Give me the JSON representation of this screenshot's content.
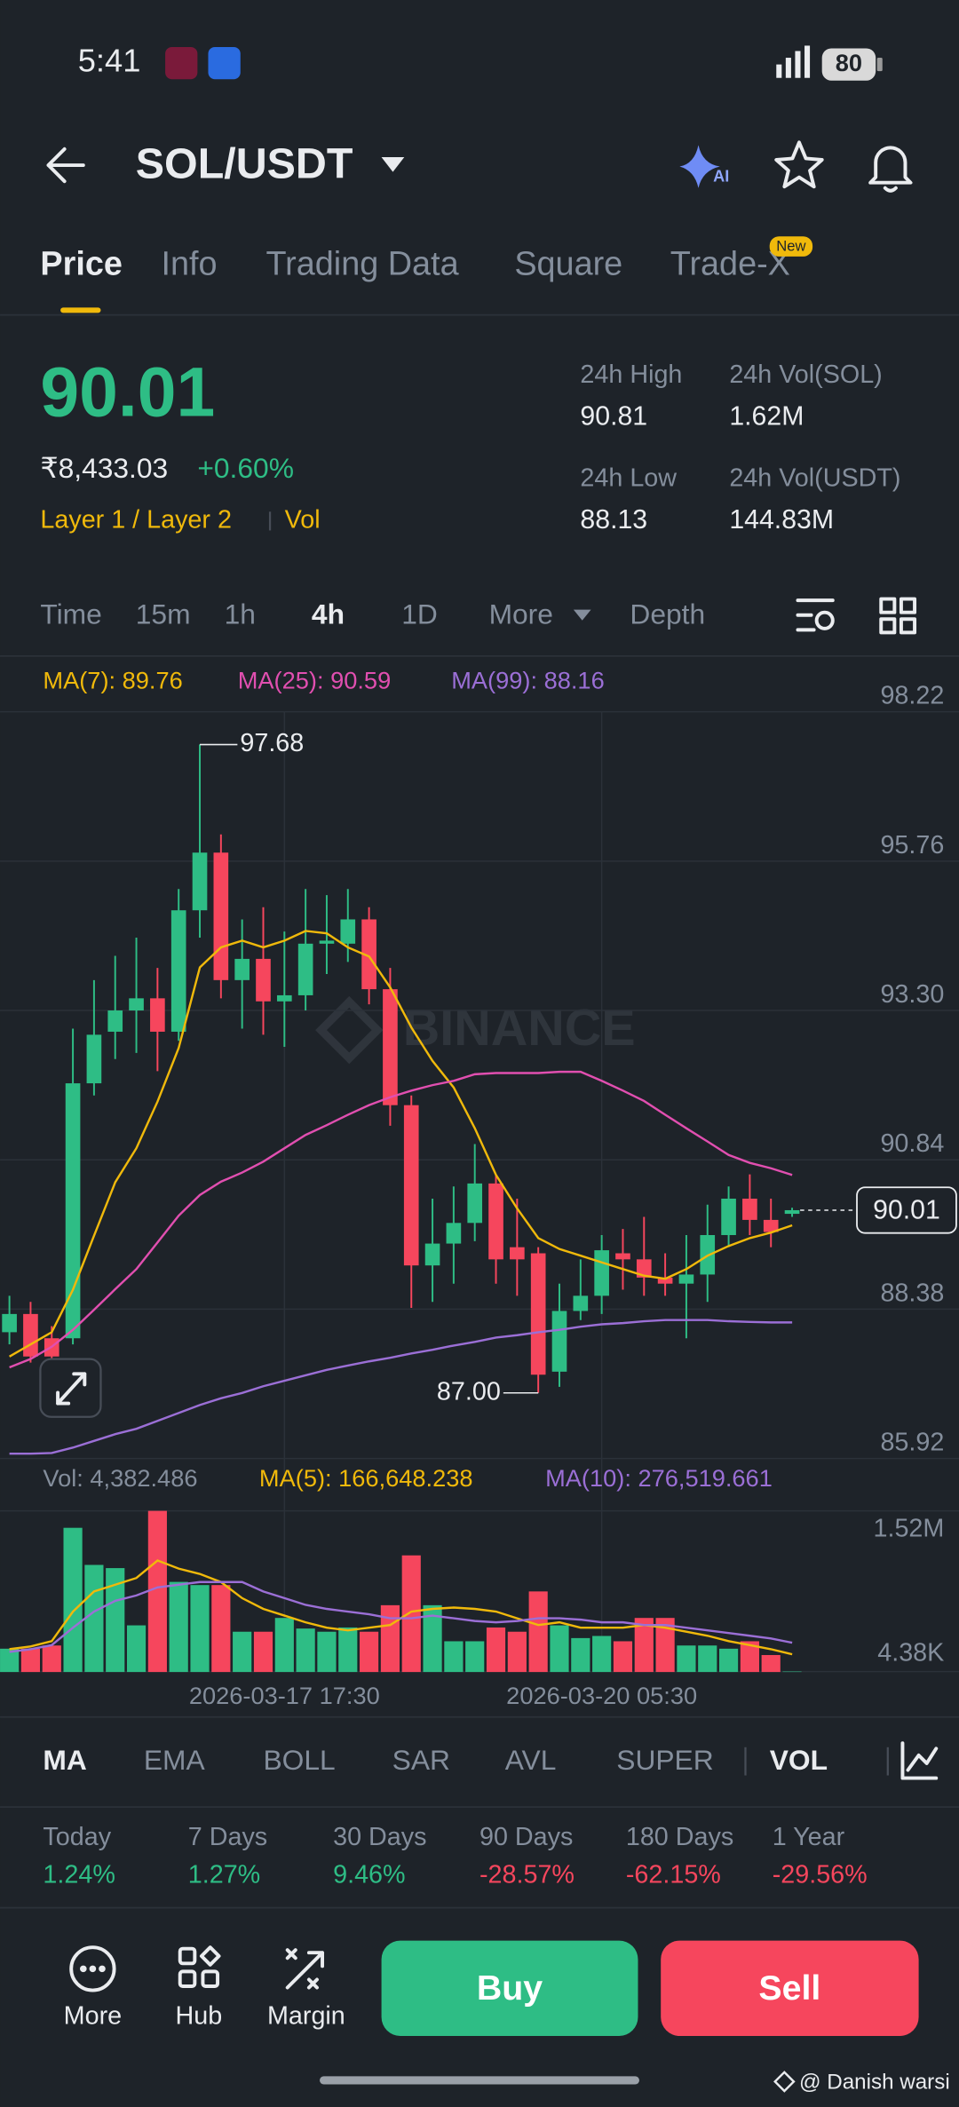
{
  "status_bar": {
    "time": "5:41",
    "battery": "80"
  },
  "header": {
    "pair": "SOL/USDT"
  },
  "tabs": {
    "items": [
      "Price",
      "Info",
      "Trading Data",
      "Square",
      "Trade-X"
    ],
    "badge": "New"
  },
  "ticker": {
    "price": "90.01",
    "fiat_price": "₹8,433.03",
    "change": "+0.60%",
    "tags": [
      "Layer 1 / Layer 2",
      "Vol"
    ],
    "stats": [
      {
        "label": "24h High",
        "value": "90.81"
      },
      {
        "label": "24h Vol(SOL)",
        "value": "1.62M"
      },
      {
        "label": "24h Low",
        "value": "88.13"
      },
      {
        "label": "24h Vol(USDT)",
        "value": "144.83M"
      }
    ]
  },
  "intervals": [
    "Time",
    "15m",
    "1h",
    "4h",
    "1D",
    "More",
    "Depth"
  ],
  "watermark": "BINANCE",
  "chart_data": [
    {
      "type": "candlestick",
      "up_color": "#2ebd85",
      "down_color": "#f6465d",
      "grid": true,
      "ylim": [
        85.92,
        98.22
      ],
      "yticks": [
        98.22,
        95.76,
        {
          "value": 93.3,
          "label": "93.30"
        },
        90.84,
        88.38,
        85.92
      ],
      "open": [
        88.0,
        88.3,
        87.9,
        87.9,
        92.1,
        92.95,
        93.3,
        93.5,
        92.95,
        94.95,
        95.9,
        93.8,
        94.15,
        93.45,
        93.55,
        94.4,
        94.4,
        94.8,
        93.65,
        91.74,
        89.1,
        89.46,
        89.8,
        90.45,
        89.4,
        89.3,
        87.35,
        88.35,
        88.6,
        89.3,
        89.2,
        88.9,
        88.8,
        88.95,
        89.6,
        90.2,
        89.85,
        89.95
      ],
      "high": [
        88.6,
        88.5,
        88.1,
        93.0,
        93.8,
        94.2,
        94.5,
        94.0,
        95.3,
        97.68,
        96.2,
        94.8,
        95.0,
        94.6,
        95.3,
        95.2,
        95.3,
        95.0,
        94.0,
        91.9,
        90.2,
        90.4,
        91.1,
        90.6,
        90.2,
        89.4,
        88.8,
        89.2,
        89.6,
        89.7,
        89.9,
        89.3,
        89.6,
        90.1,
        90.4,
        90.6,
        90.2,
        90.05
      ],
      "low": [
        87.8,
        87.5,
        87.2,
        87.8,
        91.9,
        92.5,
        92.6,
        92.3,
        92.8,
        94.5,
        93.5,
        93.0,
        92.9,
        92.7,
        93.3,
        93.9,
        94.1,
        93.4,
        91.4,
        88.4,
        88.5,
        88.8,
        89.5,
        88.8,
        88.6,
        87.0,
        87.1,
        88.2,
        88.3,
        88.7,
        88.6,
        88.6,
        87.9,
        88.5,
        89.4,
        89.6,
        89.4,
        89.9
      ],
      "close": [
        88.3,
        87.6,
        87.6,
        92.1,
        92.9,
        93.3,
        93.5,
        92.95,
        94.95,
        95.9,
        93.8,
        94.15,
        93.45,
        93.55,
        94.4,
        94.45,
        94.8,
        93.65,
        91.74,
        89.1,
        89.46,
        89.8,
        90.45,
        89.2,
        89.2,
        87.3,
        88.35,
        88.6,
        89.35,
        89.2,
        88.9,
        88.8,
        88.95,
        89.6,
        90.2,
        89.85,
        89.65,
        90.01
      ],
      "series": [
        {
          "name": "MA(7): 89.76",
          "color": "#f0b90b",
          "values": [
            87.6,
            87.8,
            88.0,
            88.7,
            89.59,
            90.47,
            91.03,
            91.8,
            92.68,
            94.01,
            94.34,
            94.45,
            94.34,
            94.45,
            94.61,
            94.57,
            94.34,
            94.19,
            93.68,
            93.02,
            92.47,
            92.03,
            91.36,
            90.59,
            90.04,
            89.55,
            89.37,
            89.26,
            89.15,
            89.04,
            88.93,
            88.88,
            89.04,
            89.26,
            89.42,
            89.55,
            89.64,
            89.76
          ]
        },
        {
          "name": "MA(25): 90.59",
          "color": "#e14fb0",
          "values": [
            87.42,
            87.56,
            87.76,
            88.04,
            88.37,
            88.71,
            89.04,
            89.48,
            89.92,
            90.26,
            90.48,
            90.63,
            90.81,
            91.03,
            91.25,
            91.41,
            91.58,
            91.74,
            91.87,
            91.98,
            92.07,
            92.14,
            92.25,
            92.27,
            92.27,
            92.27,
            92.29,
            92.29,
            92.14,
            91.98,
            91.81,
            91.58,
            91.36,
            91.14,
            90.92,
            90.79,
            90.7,
            90.59
          ]
        },
        {
          "name": "MA(99): 88.16",
          "color": "#9b6fd6",
          "values": [
            86.0,
            86.0,
            86.01,
            86.1,
            86.21,
            86.32,
            86.41,
            86.54,
            86.67,
            86.8,
            86.91,
            87.0,
            87.11,
            87.2,
            87.29,
            87.38,
            87.45,
            87.52,
            87.58,
            87.65,
            87.71,
            87.78,
            87.84,
            87.91,
            87.95,
            88.0,
            88.04,
            88.09,
            88.13,
            88.15,
            88.18,
            88.2,
            88.2,
            88.2,
            88.18,
            88.17,
            88.16,
            88.16
          ]
        }
      ],
      "max_label": 97.68,
      "min_label": {
        "value": 87,
        "label": "87.00"
      },
      "last": 90.01
    },
    {
      "type": "bar",
      "name": "Vol: 4,382.486",
      "color": "#848e9c",
      "grid": true,
      "categories": [
        null,
        null,
        null,
        null,
        null,
        null,
        null,
        null,
        null,
        null,
        null,
        null,
        null,
        "2026-03-17 17:30",
        null,
        null,
        null,
        null,
        null,
        null,
        null,
        null,
        null,
        null,
        null,
        null,
        null,
        null,
        "2026-03-20 05:30",
        null,
        null,
        null,
        null,
        null,
        null,
        null,
        null,
        null
      ],
      "values": [
        220000,
        220000,
        250000,
        1360000,
        1010000,
        980000,
        440000,
        1520000,
        850000,
        820000,
        820000,
        380000,
        380000,
        510000,
        410000,
        380000,
        420000,
        380000,
        630000,
        1100000,
        630000,
        290000,
        290000,
        420000,
        380000,
        760000,
        440000,
        320000,
        340000,
        290000,
        510000,
        510000,
        250000,
        250000,
        220000,
        290000,
        160000,
        4382.486
      ],
      "ylim": [
        0,
        1520000
      ],
      "yticks": [
        {
          "value": 1520000,
          "label": "1.52M"
        },
        {
          "value": 4380,
          "label": "4.38K"
        }
      ],
      "series": [
        {
          "name": "MA(5): 166,648.238",
          "color": "#f0b90b",
          "values": [
            215000,
            241000,
            291000,
            570000,
            760000,
            823000,
            887000,
            1051000,
            975000,
            925000,
            849000,
            697000,
            595000,
            532000,
            469000,
            418000,
            393000,
            418000,
            443000,
            570000,
            595000,
            608000,
            595000,
            570000,
            507000,
            443000,
            469000,
            418000,
            418000,
            418000,
            443000,
            418000,
            380000,
            342000,
            291000,
            253000,
            215000,
            166648.238
          ]
        },
        {
          "name": "MA(10): 276,519.661",
          "color": "#9b6fd6",
          "values": [
            190000,
            215000,
            253000,
            418000,
            570000,
            671000,
            722000,
            798000,
            823000,
            849000,
            849000,
            849000,
            760000,
            697000,
            633000,
            595000,
            570000,
            545000,
            507000,
            507000,
            532000,
            507000,
            481000,
            469000,
            481000,
            507000,
            507000,
            494000,
            469000,
            469000,
            443000,
            443000,
            418000,
            393000,
            367000,
            342000,
            317000,
            276519.661
          ]
        }
      ]
    }
  ],
  "indicators": [
    "MA",
    "EMA",
    "BOLL",
    "SAR",
    "AVL",
    "SUPER",
    "VOL"
  ],
  "performance": [
    {
      "label": "Today",
      "value": "1.24%"
    },
    {
      "label": "7 Days",
      "value": "1.27%"
    },
    {
      "label": "30 Days",
      "value": "9.46%"
    },
    {
      "label": "90 Days",
      "value": "-28.57%"
    },
    {
      "label": "180 Days",
      "value": "-62.15%"
    },
    {
      "label": "1 Year",
      "value": "-29.56%"
    }
  ],
  "actions": [
    "More",
    "Hub",
    "Margin"
  ],
  "buy": "Buy",
  "sell": "Sell",
  "credit": "@ Danish warsi"
}
